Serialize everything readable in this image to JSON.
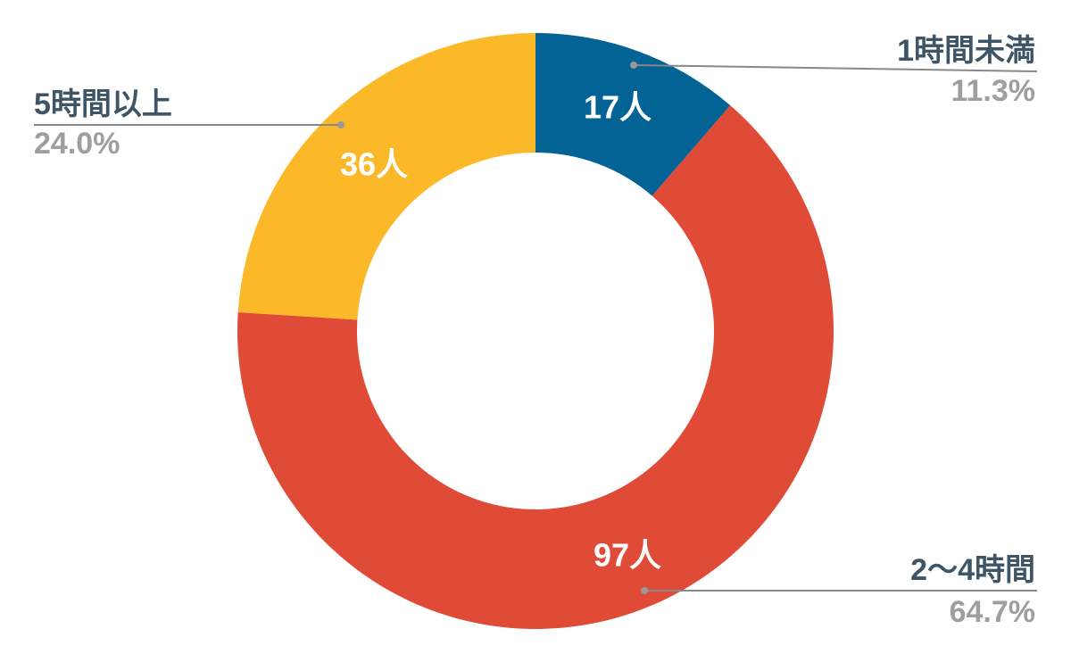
{
  "chart_data": {
    "type": "pie",
    "donut": true,
    "slices": [
      {
        "category": "1時間未満",
        "value": 17,
        "value_label": "17人",
        "percent_label": "11.3%",
        "color": "#036394"
      },
      {
        "category": "2〜4時間",
        "value": 97,
        "value_label": "97人",
        "percent_label": "64.7%",
        "color": "#e04b37"
      },
      {
        "category": "5時間以上",
        "value": 36,
        "value_label": "36人",
        "percent_label": "24.0%",
        "color": "#fbb92a"
      }
    ]
  }
}
